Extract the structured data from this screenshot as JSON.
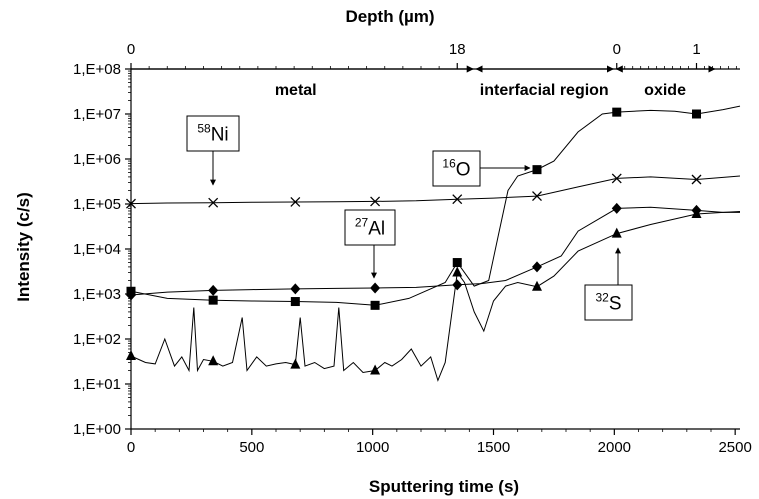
{
  "chart_data": {
    "type": "line",
    "title": "",
    "xlabel": "Sputtering time (s)",
    "ylabel": "Intensity (c/s)",
    "top_xlabel": "Depth (µm)",
    "xlim": [
      0,
      2520
    ],
    "ylim_log10": [
      0,
      8
    ],
    "x_ticks": [
      0,
      500,
      1000,
      1500,
      2000,
      2500
    ],
    "x_tick_labels": [
      "0",
      "500",
      "1000",
      "1500",
      "2000",
      "2500"
    ],
    "y_ticks_log10": [
      0,
      1,
      2,
      3,
      4,
      5,
      6,
      7,
      8
    ],
    "y_tick_labels": [
      "1,E+00",
      "1,E+01",
      "1,E+02",
      "1,E+03",
      "1,E+04",
      "1,E+05",
      "1,E+06",
      "1,E+07",
      "1,E+08"
    ],
    "top_ticks": [
      {
        "x": 0,
        "label": "0"
      },
      {
        "x": 1350,
        "label": "18"
      },
      {
        "x": 2010,
        "label": "0"
      },
      {
        "x": 2340,
        "label": "1"
      }
    ],
    "regions": [
      {
        "label": "metal",
        "x_start": 0,
        "x_end": 1420
      },
      {
        "label": "interfacial region",
        "x_start": 1420,
        "x_end": 2000
      },
      {
        "label": "oxide",
        "x_start": 2000,
        "x_end": 2420
      }
    ],
    "series": [
      {
        "name": "58Ni",
        "marker": "x",
        "points": [
          [
            0,
            102000
          ],
          [
            150,
            105000
          ],
          [
            340,
            107000
          ],
          [
            500,
            109000
          ],
          [
            680,
            111000
          ],
          [
            850,
            112000
          ],
          [
            1010,
            114000
          ],
          [
            1180,
            118000
          ],
          [
            1350,
            128000
          ],
          [
            1500,
            135000
          ],
          [
            1680,
            150000
          ],
          [
            1850,
            240000
          ],
          [
            2010,
            370000
          ],
          [
            2150,
            400000
          ],
          [
            2340,
            350000
          ],
          [
            2450,
            390000
          ],
          [
            2520,
            420000
          ]
        ],
        "marker_points": [
          [
            0,
            102000
          ],
          [
            340,
            107000
          ],
          [
            680,
            111000
          ],
          [
            1010,
            114000
          ],
          [
            1350,
            128000
          ],
          [
            1680,
            150000
          ],
          [
            2010,
            370000
          ],
          [
            2340,
            350000
          ]
        ]
      },
      {
        "name": "16O",
        "marker": "square",
        "points": [
          [
            0,
            1150
          ],
          [
            150,
            800
          ],
          [
            340,
            730
          ],
          [
            500,
            700
          ],
          [
            680,
            680
          ],
          [
            850,
            650
          ],
          [
            1010,
            560
          ],
          [
            1150,
            800
          ],
          [
            1300,
            1800
          ],
          [
            1350,
            5000
          ],
          [
            1420,
            1500
          ],
          [
            1480,
            2000
          ],
          [
            1520,
            20000
          ],
          [
            1560,
            200000
          ],
          [
            1600,
            420000
          ],
          [
            1680,
            580000
          ],
          [
            1750,
            900000
          ],
          [
            1850,
            4000000
          ],
          [
            1950,
            10000000
          ],
          [
            2010,
            11000000
          ],
          [
            2150,
            12000000
          ],
          [
            2250,
            11500000
          ],
          [
            2340,
            10000000
          ],
          [
            2450,
            12500000
          ],
          [
            2520,
            15000000
          ]
        ],
        "marker_points": [
          [
            0,
            1150
          ],
          [
            340,
            730
          ],
          [
            680,
            680
          ],
          [
            1010,
            560
          ],
          [
            1350,
            5000
          ],
          [
            1680,
            580000
          ],
          [
            2010,
            11000000
          ],
          [
            2340,
            10000000
          ]
        ]
      },
      {
        "name": "27Al",
        "marker": "diamond",
        "points": [
          [
            0,
            950
          ],
          [
            150,
            1100
          ],
          [
            340,
            1200
          ],
          [
            500,
            1250
          ],
          [
            680,
            1300
          ],
          [
            850,
            1330
          ],
          [
            1010,
            1360
          ],
          [
            1180,
            1400
          ],
          [
            1350,
            1600
          ],
          [
            1450,
            1700
          ],
          [
            1550,
            2000
          ],
          [
            1680,
            4000
          ],
          [
            1780,
            7000
          ],
          [
            1850,
            25000
          ],
          [
            2010,
            80000
          ],
          [
            2150,
            85000
          ],
          [
            2340,
            72000
          ],
          [
            2450,
            65000
          ],
          [
            2520,
            65000
          ]
        ],
        "marker_points": [
          [
            0,
            950
          ],
          [
            340,
            1200
          ],
          [
            680,
            1300
          ],
          [
            1010,
            1360
          ],
          [
            1350,
            1600
          ],
          [
            1680,
            4000
          ],
          [
            2010,
            80000
          ],
          [
            2340,
            72000
          ]
        ]
      },
      {
        "name": "32S",
        "marker": "triangle",
        "points": [
          [
            0,
            42
          ],
          [
            60,
            30
          ],
          [
            100,
            28
          ],
          [
            140,
            100
          ],
          [
            180,
            25
          ],
          [
            210,
            40
          ],
          [
            240,
            20
          ],
          [
            260,
            500
          ],
          [
            275,
            20
          ],
          [
            300,
            35
          ],
          [
            340,
            32
          ],
          [
            380,
            25
          ],
          [
            420,
            30
          ],
          [
            460,
            300
          ],
          [
            480,
            20
          ],
          [
            520,
            40
          ],
          [
            560,
            25
          ],
          [
            600,
            28
          ],
          [
            640,
            30
          ],
          [
            680,
            27
          ],
          [
            700,
            300
          ],
          [
            720,
            25
          ],
          [
            760,
            30
          ],
          [
            800,
            22
          ],
          [
            840,
            25
          ],
          [
            860,
            500
          ],
          [
            880,
            20
          ],
          [
            920,
            30
          ],
          [
            960,
            18
          ],
          [
            1010,
            20
          ],
          [
            1050,
            30
          ],
          [
            1080,
            25
          ],
          [
            1120,
            35
          ],
          [
            1160,
            60
          ],
          [
            1200,
            25
          ],
          [
            1240,
            40
          ],
          [
            1270,
            12
          ],
          [
            1300,
            30
          ],
          [
            1350,
            3000
          ],
          [
            1380,
            1800
          ],
          [
            1420,
            400
          ],
          [
            1460,
            150
          ],
          [
            1500,
            700
          ],
          [
            1550,
            1500
          ],
          [
            1600,
            1800
          ],
          [
            1680,
            1450
          ],
          [
            1750,
            2500
          ],
          [
            1850,
            9000
          ],
          [
            2010,
            22000
          ],
          [
            2150,
            35000
          ],
          [
            2340,
            60000
          ],
          [
            2450,
            65000
          ],
          [
            2520,
            68000
          ]
        ],
        "marker_points": [
          [
            0,
            42
          ],
          [
            340,
            32
          ],
          [
            680,
            27
          ],
          [
            1010,
            20
          ],
          [
            1350,
            3000
          ],
          [
            1680,
            1450
          ],
          [
            2010,
            22000
          ],
          [
            2340,
            60000
          ]
        ]
      }
    ],
    "annotations": [
      {
        "mass": "58",
        "element": "Ni",
        "series": "58Ni"
      },
      {
        "mass": "16",
        "element": "O",
        "series": "16O"
      },
      {
        "mass": "27",
        "element": "Al",
        "series": "27Al"
      },
      {
        "mass": "32",
        "element": "S",
        "series": "32S"
      }
    ]
  }
}
